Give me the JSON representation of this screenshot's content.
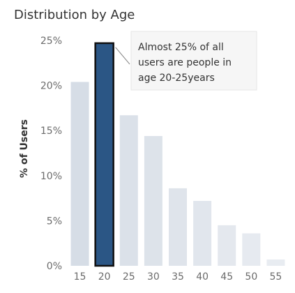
{
  "chart_data": {
    "type": "bar",
    "title": "Distribution by Age",
    "ylabel": "% of Users",
    "xlabel": "",
    "categories": [
      "15",
      "20",
      "25",
      "30",
      "35",
      "40",
      "45",
      "50",
      "55"
    ],
    "values": [
      20.4,
      24.7,
      16.7,
      14.4,
      8.6,
      7.2,
      4.5,
      3.6,
      0.7
    ],
    "ylim": [
      0,
      25
    ],
    "ytick_values": [
      0,
      5,
      10,
      15,
      20,
      25
    ],
    "ytick_labels": [
      "0%",
      "5%",
      "10%",
      "15%",
      "20%",
      "25%"
    ],
    "highlight_category": "20",
    "colors": {
      "highlight": "#2b5685",
      "highlight_border": "#111111",
      "bar_base": "#d6dde6"
    },
    "annotation": {
      "category": "20",
      "lines": [
        "Almost 25% of all",
        "users are people in",
        "age 20-25years"
      ]
    }
  }
}
